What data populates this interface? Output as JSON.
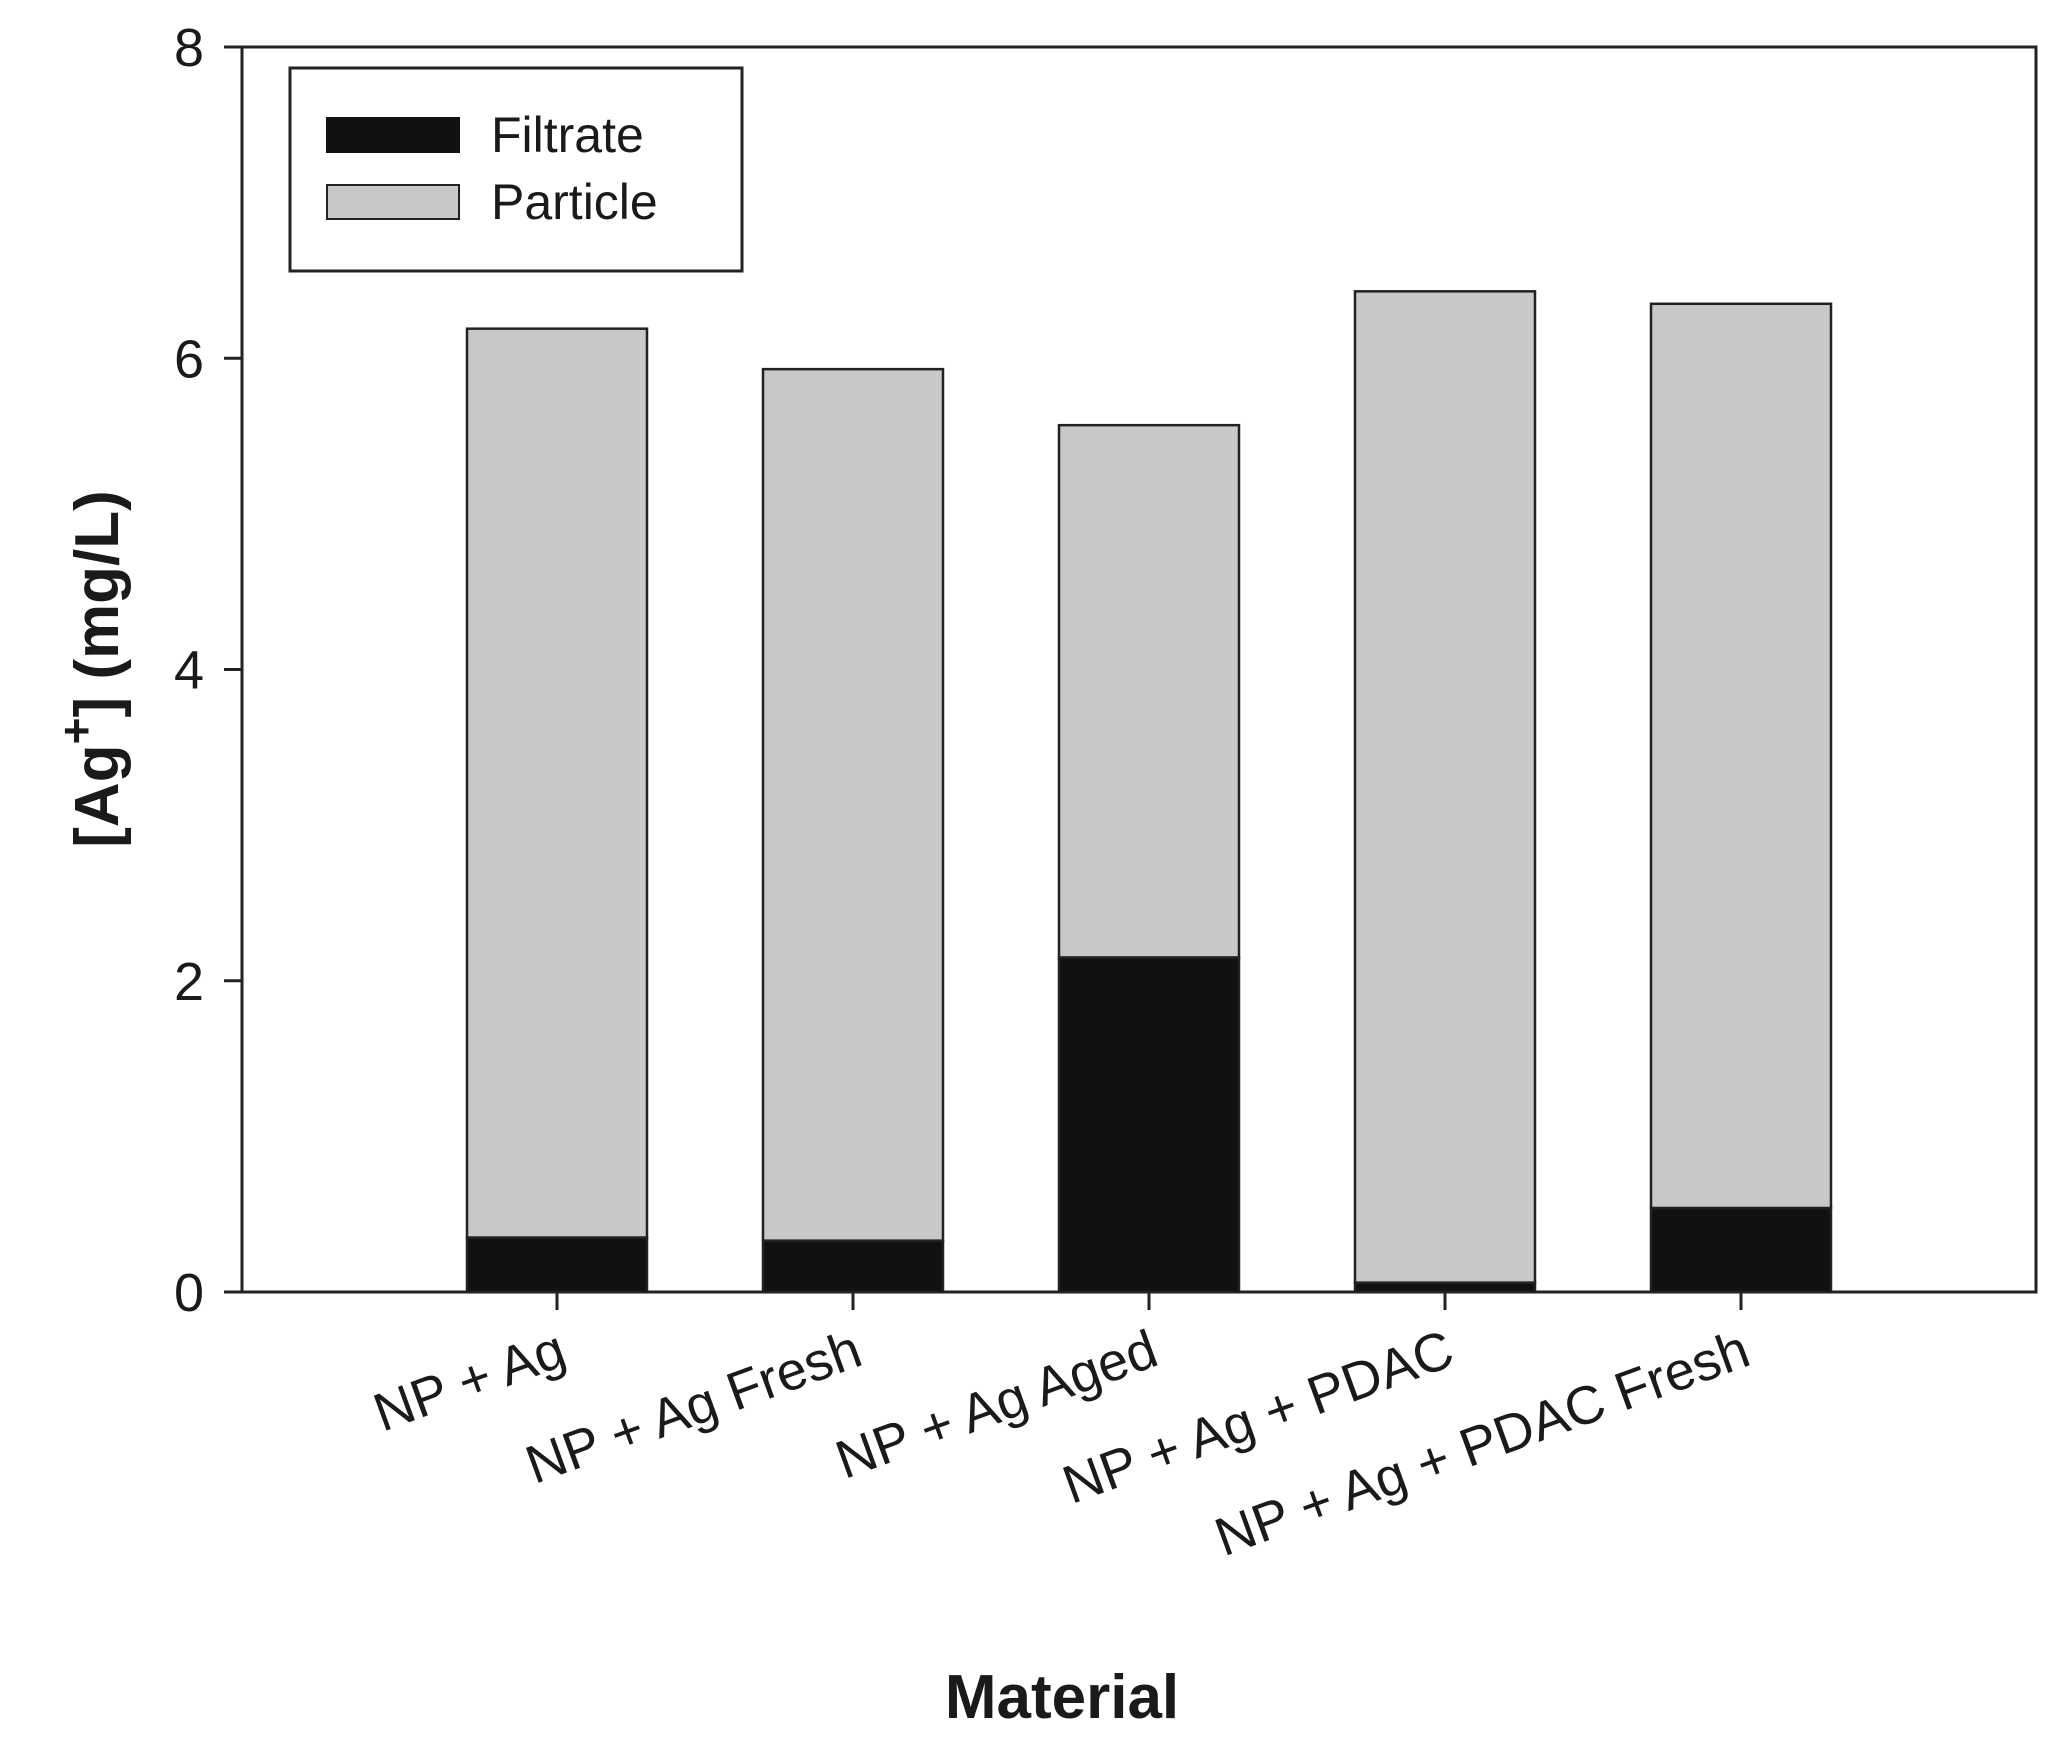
{
  "chart_data": {
    "type": "bar",
    "stacked": true,
    "categories": [
      "NP + Ag",
      "NP + Ag Fresh",
      "NP + Ag Aged",
      "NP + Ag + PDAC",
      "NP + Ag + PDAC Fresh"
    ],
    "series": [
      {
        "name": "Filtrate",
        "color": "#111111",
        "values": [
          0.35,
          0.33,
          2.15,
          0.06,
          0.54
        ]
      },
      {
        "name": "Particle",
        "color": "#c8c8c8",
        "values": [
          5.84,
          5.6,
          3.42,
          6.37,
          5.81
        ]
      }
    ],
    "xlabel": "Material",
    "ylabel": {
      "prefix": "[Ag",
      "superscript": "+",
      "suffix": "] (mg/L)"
    },
    "ylim": [
      0,
      8
    ],
    "yticks": [
      "0",
      "2",
      "4",
      "6",
      "8"
    ],
    "grid": false,
    "legend_position": "top-left"
  }
}
